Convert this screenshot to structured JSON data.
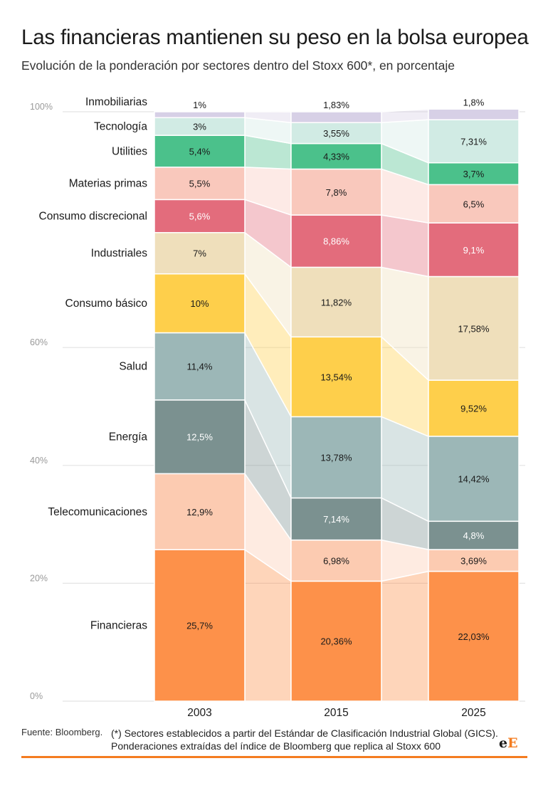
{
  "title": "Las financieras mantienen su peso en la bolsa europea",
  "subtitle": "Evolución de la ponderación por sectores dentro del Stoxx 600*, en porcentaje",
  "footer": {
    "source": "Fuente: Bloomberg.",
    "note_line1": "(*) Sectores establecidos a partir del Estándar de Clasificación Industrial Global (GICS).",
    "note_line2": "Ponderaciones extraídas del índice de Bloomberg que replica al Stoxx 600"
  },
  "logo": {
    "part1": "e",
    "part2": "E"
  },
  "chart_data": {
    "type": "bar",
    "stacked": true,
    "categories": [
      "2003",
      "2015",
      "2025"
    ],
    "y_ticks": [
      {
        "value": 0,
        "label": "0%"
      },
      {
        "value": 20,
        "label": "20%"
      },
      {
        "value": 40,
        "label": "40%"
      },
      {
        "value": 60,
        "label": "60%"
      },
      {
        "value": 100,
        "label": "100%"
      }
    ],
    "ylim": [
      0,
      100
    ],
    "grid": true,
    "series": [
      {
        "name": "Financieras",
        "color": "#fd914a",
        "values": [
          25.7,
          20.36,
          22.03
        ],
        "labels": [
          "25,7%",
          "20,36%",
          "22,03%"
        ]
      },
      {
        "name": "Telecomunicaciones",
        "color": "#fccbb1",
        "values": [
          12.9,
          6.98,
          3.69
        ],
        "labels": [
          "12,9%",
          "6,98%",
          "3,69%"
        ]
      },
      {
        "name": "Energía",
        "color": "#7b9190",
        "values": [
          12.5,
          7.14,
          4.8
        ],
        "labels": [
          "12,5%",
          "7,14%",
          "4,8%"
        ]
      },
      {
        "name": "Salud",
        "color": "#9cb7b7",
        "values": [
          11.4,
          13.78,
          14.42
        ],
        "labels": [
          "11,4%",
          "13,78%",
          "14,42%"
        ]
      },
      {
        "name": "Consumo básico",
        "color": "#fecf4b",
        "values": [
          10,
          13.54,
          9.52
        ],
        "labels": [
          "10%",
          "13,54%",
          "9,52%"
        ]
      },
      {
        "name": "Industriales",
        "color": "#efdfbb",
        "values": [
          7,
          11.82,
          17.58
        ],
        "labels": [
          "7%",
          "11,82%",
          "17,58%"
        ]
      },
      {
        "name": "Consumo discrecional",
        "color": "#e36c7c",
        "values": [
          5.6,
          8.86,
          9.1
        ],
        "labels": [
          "5,6%",
          "8,86%",
          "9,1%"
        ]
      },
      {
        "name": "Materias primas",
        "color": "#f9c8bc",
        "values": [
          5.5,
          7.8,
          6.5
        ],
        "labels": [
          "5,5%",
          "7,8%",
          "6,5%"
        ]
      },
      {
        "name": "Utilities",
        "color": "#4bc18b",
        "values": [
          5.4,
          4.33,
          3.7
        ],
        "labels": [
          "5,4%",
          "4,33%",
          "3,7%"
        ]
      },
      {
        "name": "Tecnología",
        "color": "#d1ebe4",
        "values": [
          3,
          3.55,
          7.31
        ],
        "labels": [
          "3%",
          "3,55%",
          "7,31%"
        ]
      },
      {
        "name": "Inmobiliarias",
        "color": "#d7d0e6",
        "values": [
          1,
          1.83,
          1.8
        ],
        "labels": [
          "1%",
          "1,83%",
          "1,8%"
        ]
      }
    ]
  }
}
